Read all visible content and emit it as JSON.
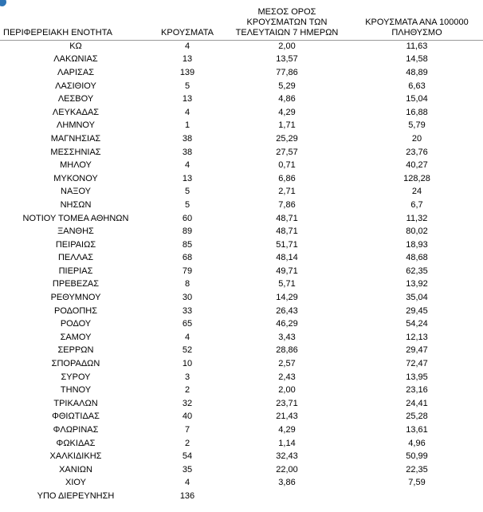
{
  "accent_color": "#2e74b5",
  "table": {
    "headers": {
      "region": "ΠΕΡΙΦΕΡΕΙΑΚΗ ΕΝΟΤΗΤΑ",
      "cases": "ΚΡΟΥΣΜΑΤΑ",
      "avg7": "ΜΕΣΟΣ ΟΡΟΣ\nΚΡΟΥΣΜΑΤΩΝ ΤΩΝ\nΤΕΛΕΥΤΑΙΩΝ 7 ΗΜΕΡΩΝ",
      "per100k": "ΚΡΟΥΣΜΑΤΑ ΑΝΑ 100000\nΠΛΗΘΥΣΜΟ"
    },
    "rows": [
      [
        "ΚΩ",
        "4",
        "2,00",
        "11,63"
      ],
      [
        "ΛΑΚΩΝΙΑΣ",
        "13",
        "13,57",
        "14,58"
      ],
      [
        "ΛΑΡΙΣΑΣ",
        "139",
        "77,86",
        "48,89"
      ],
      [
        "ΛΑΣΙΘΙΟΥ",
        "5",
        "5,29",
        "6,63"
      ],
      [
        "ΛΕΣΒΟΥ",
        "13",
        "4,86",
        "15,04"
      ],
      [
        "ΛΕΥΚΑΔΑΣ",
        "4",
        "4,29",
        "16,88"
      ],
      [
        "ΛΗΜΝΟΥ",
        "1",
        "1,71",
        "5,79"
      ],
      [
        "ΜΑΓΝΗΣΙΑΣ",
        "38",
        "25,29",
        "20"
      ],
      [
        "ΜΕΣΣΗΝΙΑΣ",
        "38",
        "27,57",
        "23,76"
      ],
      [
        "ΜΗΛΟΥ",
        "4",
        "0,71",
        "40,27"
      ],
      [
        "ΜΥΚΟΝΟΥ",
        "13",
        "6,86",
        "128,28"
      ],
      [
        "ΝΑΞΟΥ",
        "5",
        "2,71",
        "24"
      ],
      [
        "ΝΗΣΩΝ",
        "5",
        "7,86",
        "6,7"
      ],
      [
        "ΝΟΤΙΟΥ ΤΟΜΕΑ ΑΘΗΝΩΝ",
        "60",
        "48,71",
        "11,32"
      ],
      [
        "ΞΑΝΘΗΣ",
        "89",
        "48,71",
        "80,02"
      ],
      [
        "ΠΕΙΡΑΙΩΣ",
        "85",
        "51,71",
        "18,93"
      ],
      [
        "ΠΕΛΛΑΣ",
        "68",
        "48,14",
        "48,68"
      ],
      [
        "ΠΙΕΡΙΑΣ",
        "79",
        "49,71",
        "62,35"
      ],
      [
        "ΠΡΕΒΕΖΑΣ",
        "8",
        "5,71",
        "13,92"
      ],
      [
        "ΡΕΘΥΜΝΟΥ",
        "30",
        "14,29",
        "35,04"
      ],
      [
        "ΡΟΔΟΠΗΣ",
        "33",
        "26,43",
        "29,45"
      ],
      [
        "ΡΟΔΟΥ",
        "65",
        "46,29",
        "54,24"
      ],
      [
        "ΣΑΜΟΥ",
        "4",
        "3,43",
        "12,13"
      ],
      [
        "ΣΕΡΡΩΝ",
        "52",
        "28,86",
        "29,47"
      ],
      [
        "ΣΠΟΡΑΔΩΝ",
        "10",
        "2,57",
        "72,47"
      ],
      [
        "ΣΥΡΟΥ",
        "3",
        "2,43",
        "13,95"
      ],
      [
        "ΤΗΝΟΥ",
        "2",
        "2,00",
        "23,16"
      ],
      [
        "ΤΡΙΚΑΛΩΝ",
        "32",
        "23,71",
        "24,41"
      ],
      [
        "ΦΘΙΩΤΙΔΑΣ",
        "40",
        "21,43",
        "25,28"
      ],
      [
        "ΦΛΩΡΙΝΑΣ",
        "7",
        "4,29",
        "13,61"
      ],
      [
        "ΦΩΚΙΔΑΣ",
        "2",
        "1,14",
        "4,96"
      ],
      [
        "ΧΑΛΚΙΔΙΚΗΣ",
        "54",
        "32,43",
        "50,99"
      ],
      [
        "ΧΑΝΙΩΝ",
        "35",
        "22,00",
        "22,35"
      ],
      [
        "ΧΙΟΥ",
        "4",
        "3,86",
        "7,59"
      ],
      [
        "ΥΠΟ ΔΙΕΡΕΥΝΗΣΗ",
        "136",
        "",
        ""
      ]
    ]
  }
}
